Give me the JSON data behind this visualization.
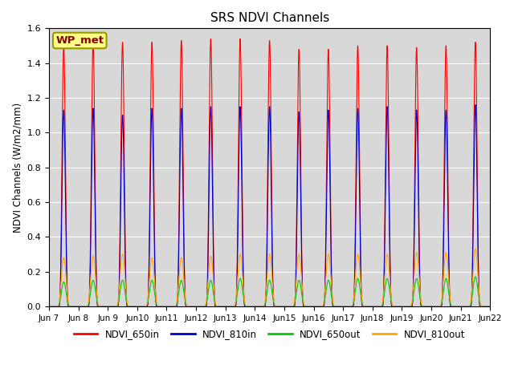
{
  "title": "SRS NDVI Channels",
  "ylabel": "NDVI Channels (W/m2/mm)",
  "site_label": "WP_met",
  "ylim": [
    0.0,
    1.6
  ],
  "yticks": [
    0.0,
    0.2,
    0.4,
    0.6,
    0.8,
    1.0,
    1.2,
    1.4,
    1.6
  ],
  "num_days": 15,
  "points_per_day": 288,
  "peak_650in": [
    1.5,
    1.52,
    1.52,
    1.52,
    1.53,
    1.54,
    1.54,
    1.53,
    1.48,
    1.48,
    1.5,
    1.5,
    1.49,
    1.5,
    1.52
  ],
  "peak_810in": [
    1.13,
    1.14,
    1.1,
    1.14,
    1.14,
    1.15,
    1.15,
    1.15,
    1.12,
    1.13,
    1.14,
    1.15,
    1.13,
    1.13,
    1.16
  ],
  "peak_650out": [
    0.14,
    0.15,
    0.15,
    0.15,
    0.15,
    0.15,
    0.16,
    0.15,
    0.15,
    0.15,
    0.16,
    0.16,
    0.16,
    0.16,
    0.17
  ],
  "peak_810out": [
    0.28,
    0.29,
    0.3,
    0.28,
    0.28,
    0.29,
    0.3,
    0.3,
    0.3,
    0.3,
    0.3,
    0.3,
    0.31,
    0.31,
    0.33
  ],
  "color_650in": "#FF0000",
  "color_810in": "#0000CD",
  "color_650out": "#00CC00",
  "color_810out": "#FFA500",
  "line_width": 0.8,
  "bg_color": "#D8D8D8",
  "legend_labels": [
    "NDVI_650in",
    "NDVI_810in",
    "NDVI_650out",
    "NDVI_810out"
  ],
  "xtick_labels": [
    "Jun 7",
    "Jun 8",
    "Jun 9",
    "Jun 10",
    "Jun 11",
    "Jun 12",
    "Jun 13",
    "Jun 14",
    "Jun 15",
    "Jun 16",
    "Jun 17",
    "Jun 18",
    "Jun 19",
    "Jun 20",
    "Jun 21",
    "Jun 22"
  ],
  "xtick_positions": [
    0,
    1,
    2,
    3,
    4,
    5,
    6,
    7,
    8,
    9,
    10,
    11,
    12,
    13,
    14,
    15
  ],
  "hw_in": 0.18,
  "hw_out": 0.22,
  "pulse_exp_in": 4,
  "pulse_exp_out": 3
}
